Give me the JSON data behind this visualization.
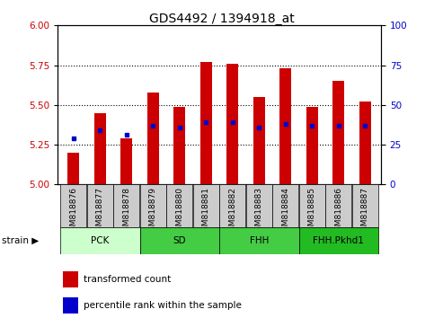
{
  "title": "GDS4492 / 1394918_at",
  "samples": [
    "GSM818876",
    "GSM818877",
    "GSM818878",
    "GSM818879",
    "GSM818880",
    "GSM818881",
    "GSM818882",
    "GSM818883",
    "GSM818884",
    "GSM818885",
    "GSM818886",
    "GSM818887"
  ],
  "red_values": [
    5.2,
    5.45,
    5.29,
    5.58,
    5.49,
    5.77,
    5.76,
    5.55,
    5.73,
    5.49,
    5.65,
    5.52
  ],
  "blue_values": [
    5.29,
    5.34,
    5.31,
    5.37,
    5.36,
    5.39,
    5.39,
    5.36,
    5.38,
    5.37,
    5.37,
    5.37
  ],
  "ymin": 5.0,
  "ymax": 6.0,
  "y2min": 0,
  "y2max": 100,
  "yticks": [
    5.0,
    5.25,
    5.5,
    5.75,
    6.0
  ],
  "y2ticks": [
    0,
    25,
    50,
    75,
    100
  ],
  "groups": [
    {
      "label": "PCK",
      "start": 0,
      "end": 3,
      "color": "#ccffcc"
    },
    {
      "label": "SD",
      "start": 3,
      "end": 6,
      "color": "#44cc44"
    },
    {
      "label": "FHH",
      "start": 6,
      "end": 9,
      "color": "#44cc44"
    },
    {
      "label": "FHH.Pkhd1",
      "start": 9,
      "end": 12,
      "color": "#22bb22"
    }
  ],
  "bar_color": "#cc0000",
  "dot_color": "#0000cc",
  "bar_width": 0.45,
  "tick_bg_color": "#cccccc",
  "ylabel_color_left": "#cc0000",
  "ylabel_color_right": "#0000cc",
  "legend_items": [
    {
      "color": "#cc0000",
      "label": "transformed count"
    },
    {
      "color": "#0000cc",
      "label": "percentile rank within the sample"
    }
  ]
}
